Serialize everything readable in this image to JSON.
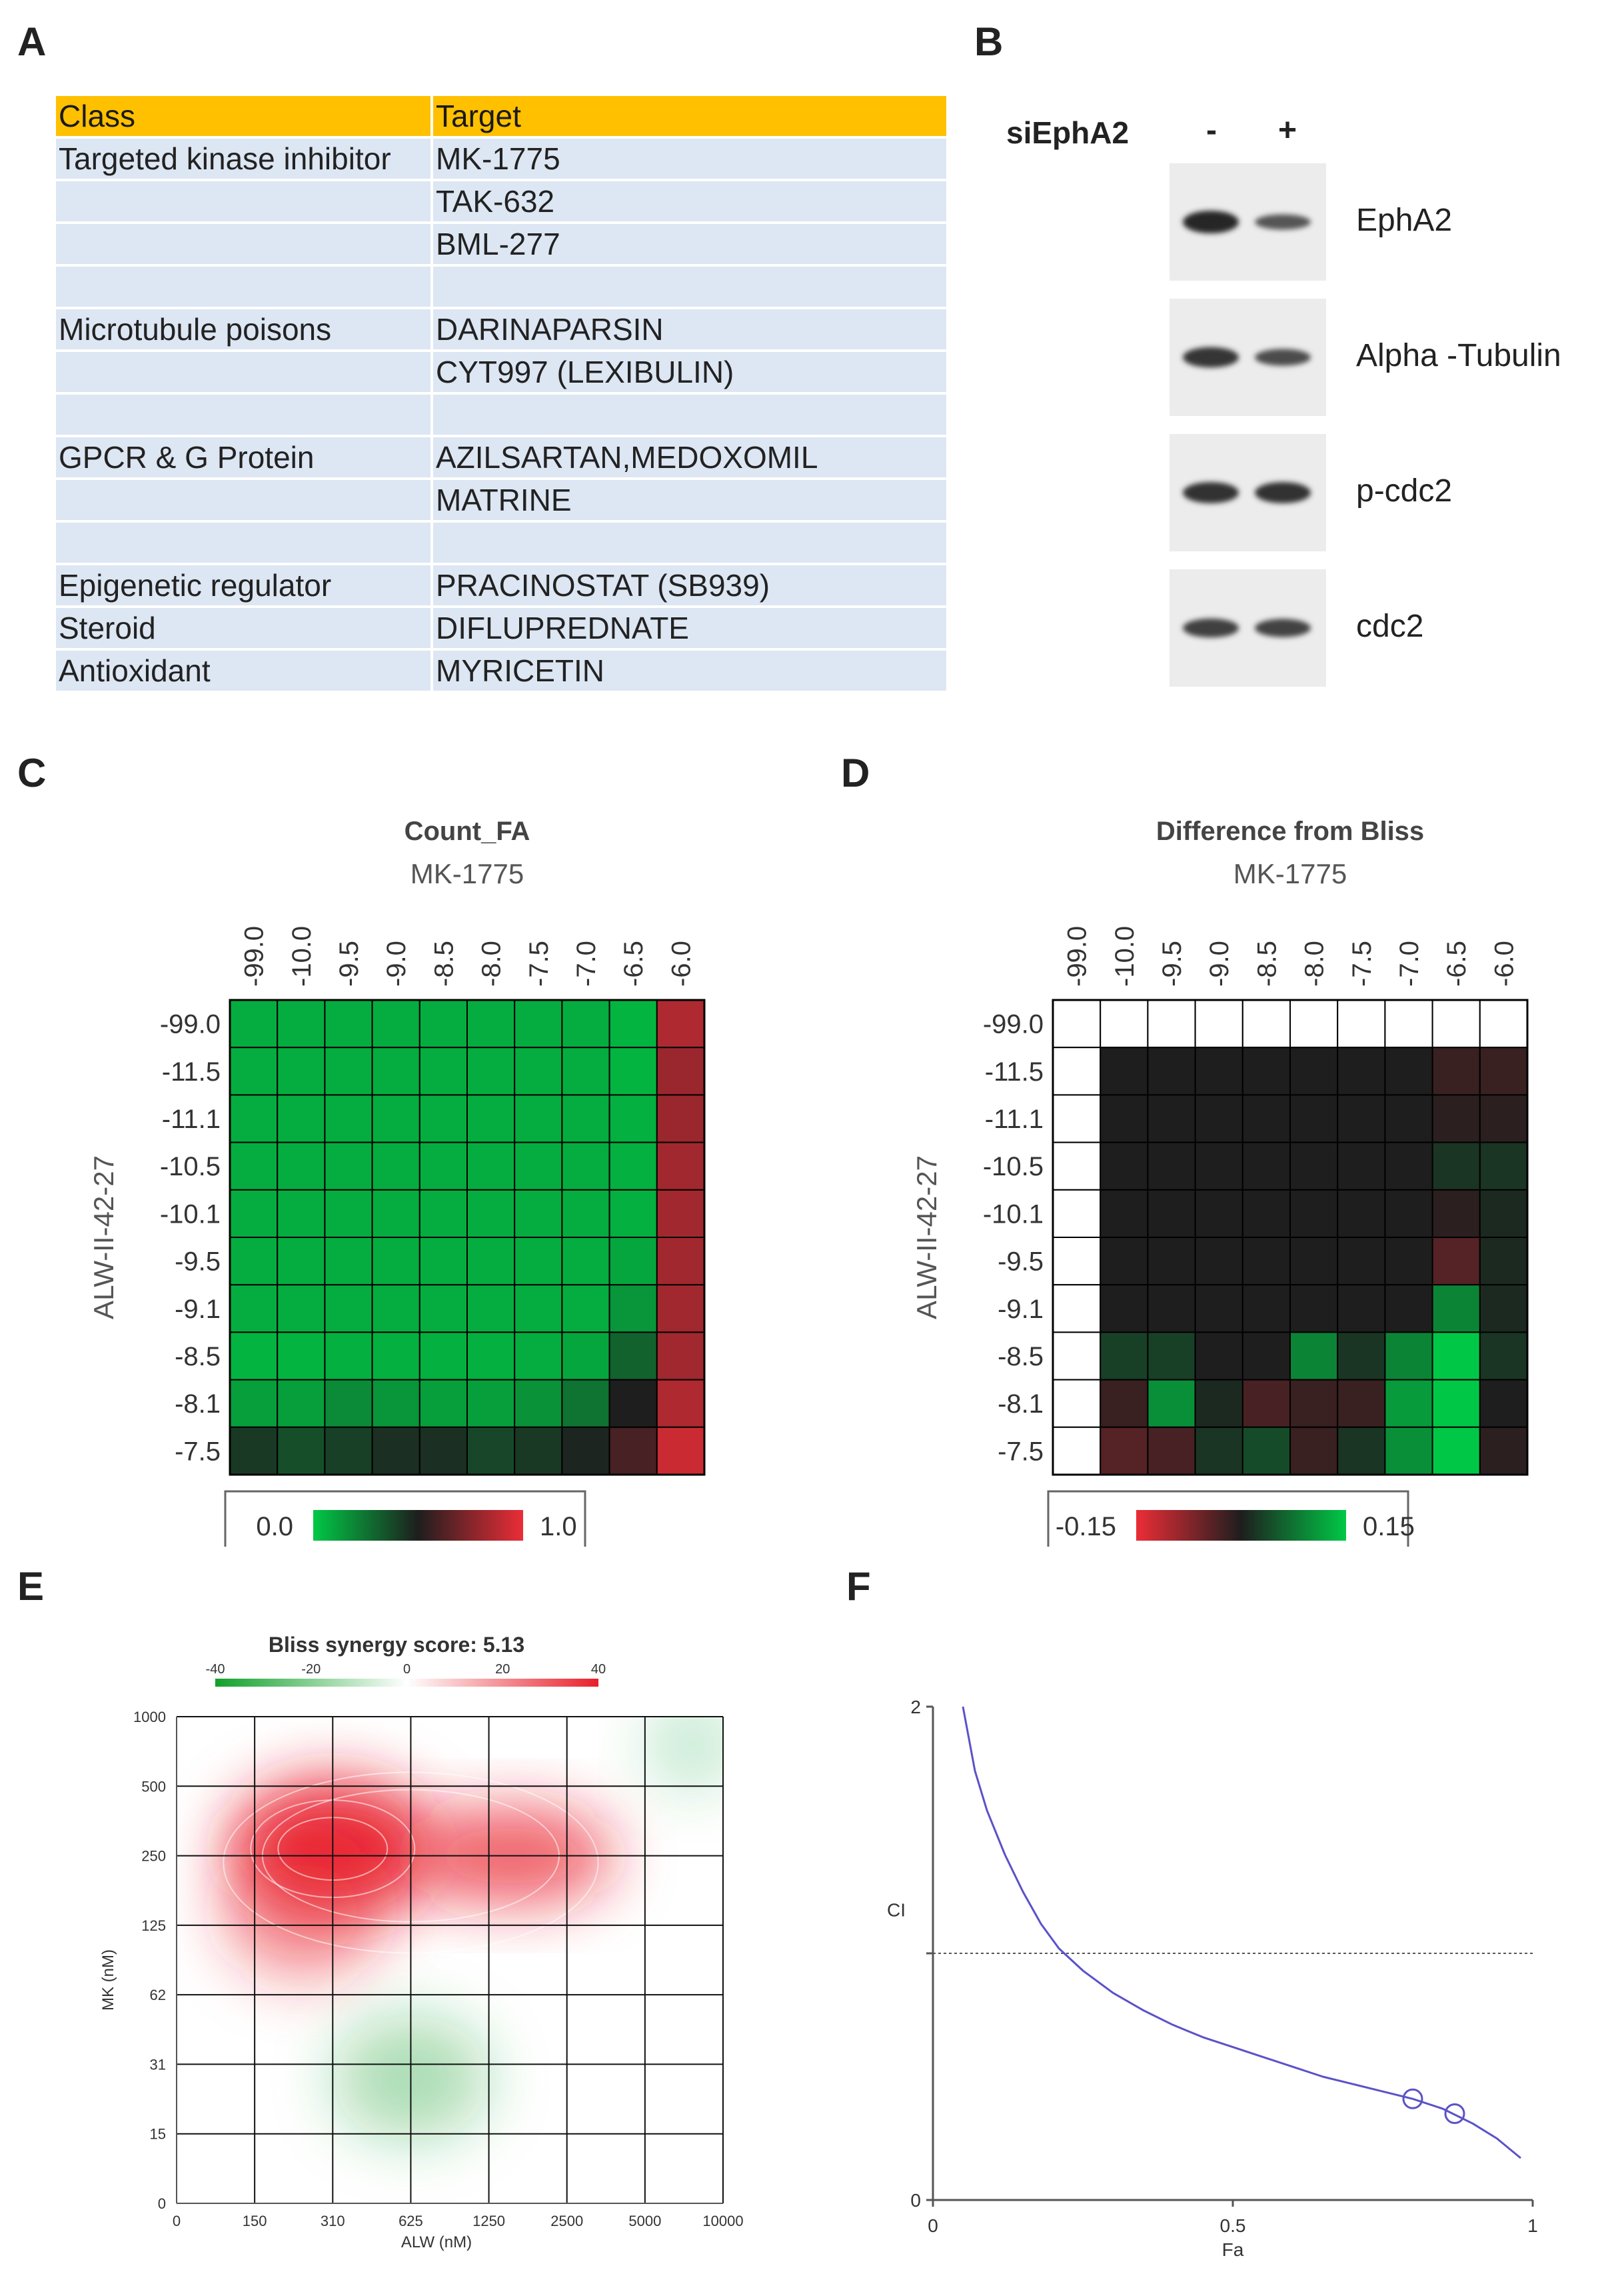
{
  "panels": {
    "A": "A",
    "B": "B",
    "C": "C",
    "D": "D",
    "E": "E",
    "F": "F"
  },
  "table": {
    "header": [
      "Class",
      "Target"
    ],
    "rows": [
      [
        "Targeted kinase inhibitor",
        "MK-1775"
      ],
      [
        "",
        "TAK-632"
      ],
      [
        "",
        "BML-277"
      ],
      [
        "",
        ""
      ],
      [
        "Microtubule  poisons",
        "DARINAPARSIN"
      ],
      [
        "",
        "CYT997  (LEXIBULIN)"
      ],
      [
        "",
        ""
      ],
      [
        "GPCR & G Protein",
        "AZILSARTAN,MEDOXOMIL"
      ],
      [
        "",
        "MATRINE"
      ],
      [
        "",
        ""
      ],
      [
        "Epigenetic regulator",
        "PRACINOSTAT  (SB939)"
      ],
      [
        "Steroid",
        "DIFLUPREDNATE"
      ],
      [
        "Antioxidant",
        "MYRICETIN"
      ]
    ]
  },
  "blot": {
    "sirna_label": "siEphA2",
    "lanes": [
      "-",
      "+"
    ],
    "proteins": [
      {
        "name": "EphA2",
        "intensity": [
          1.0,
          0.5
        ]
      },
      {
        "name": "Alpha -Tubulin",
        "intensity": [
          0.85,
          0.6
        ]
      },
      {
        "name": "p-cdc2",
        "intensity": [
          0.9,
          0.9
        ]
      },
      {
        "name": "cdc2",
        "intensity": [
          0.75,
          0.7
        ]
      }
    ]
  },
  "chart_data": [
    {
      "id": "C",
      "type": "heatmap",
      "title": "Count_FA",
      "xlabel": "MK-1775",
      "ylabel": "ALW-II-42-27",
      "x_ticks": [
        "-99.0",
        "-10.0",
        "-9.5",
        "-9.0",
        "-8.5",
        "-8.0",
        "-7.5",
        "-7.0",
        "-6.5",
        "-6.0"
      ],
      "y_ticks": [
        "-99.0",
        "-11.5",
        "-11.1",
        "-10.5",
        "-10.1",
        "-9.5",
        "-9.1",
        "-8.5",
        "-8.1",
        "-7.5"
      ],
      "values": [
        [
          0.08,
          0.08,
          0.08,
          0.08,
          0.08,
          0.08,
          0.08,
          0.08,
          0.06,
          0.85
        ],
        [
          0.08,
          0.08,
          0.08,
          0.08,
          0.08,
          0.08,
          0.08,
          0.08,
          0.06,
          0.8
        ],
        [
          0.08,
          0.08,
          0.08,
          0.08,
          0.08,
          0.08,
          0.08,
          0.08,
          0.07,
          0.8
        ],
        [
          0.08,
          0.08,
          0.08,
          0.08,
          0.08,
          0.08,
          0.08,
          0.08,
          0.07,
          0.82
        ],
        [
          0.08,
          0.08,
          0.08,
          0.08,
          0.08,
          0.08,
          0.08,
          0.08,
          0.07,
          0.82
        ],
        [
          0.08,
          0.08,
          0.08,
          0.08,
          0.08,
          0.08,
          0.08,
          0.08,
          0.1,
          0.82
        ],
        [
          0.08,
          0.08,
          0.08,
          0.08,
          0.08,
          0.08,
          0.08,
          0.08,
          0.15,
          0.82
        ],
        [
          0.06,
          0.06,
          0.07,
          0.07,
          0.07,
          0.07,
          0.08,
          0.1,
          0.3,
          0.82
        ],
        [
          0.12,
          0.12,
          0.18,
          0.15,
          0.12,
          0.12,
          0.16,
          0.25,
          0.5,
          0.85
        ],
        [
          0.42,
          0.36,
          0.4,
          0.45,
          0.45,
          0.38,
          0.42,
          0.48,
          0.6,
          0.92
        ]
      ],
      "colorbar": {
        "min": "0.0",
        "max": "1.0",
        "range": [
          0.0,
          1.0
        ]
      }
    },
    {
      "id": "D",
      "type": "heatmap",
      "title": "Difference from Bliss",
      "xlabel": "MK-1775",
      "ylabel": "ALW-II-42-27",
      "x_ticks": [
        "-99.0",
        "-10.0",
        "-9.5",
        "-9.0",
        "-8.5",
        "-8.0",
        "-7.5",
        "-7.0",
        "-6.5",
        "-6.0"
      ],
      "y_ticks": [
        "-99.0",
        "-11.5",
        "-11.1",
        "-10.5",
        "-10.1",
        "-9.5",
        "-9.1",
        "-8.5",
        "-8.1",
        "-7.5"
      ],
      "values": [
        [
          null,
          null,
          null,
          null,
          null,
          null,
          null,
          null,
          null,
          null
        ],
        [
          null,
          0,
          0,
          0,
          0,
          0,
          0,
          0,
          -0.02,
          -0.02
        ],
        [
          null,
          0,
          0,
          0,
          0,
          0,
          0,
          0,
          -0.01,
          -0.01
        ],
        [
          null,
          0,
          0,
          0,
          0,
          0,
          0,
          0,
          0.02,
          0.02
        ],
        [
          null,
          0,
          0,
          0,
          0,
          0,
          0,
          0,
          -0.01,
          0.01
        ],
        [
          null,
          0,
          0,
          0,
          0,
          0,
          0,
          0,
          -0.04,
          0.01
        ],
        [
          null,
          0,
          0,
          0,
          0,
          0,
          0,
          0,
          0.09,
          0.01
        ],
        [
          null,
          0.03,
          0.03,
          0,
          0,
          0.09,
          0.02,
          0.09,
          0.16,
          0.02
        ],
        [
          null,
          -0.02,
          0.1,
          0.01,
          -0.03,
          -0.02,
          -0.02,
          0.11,
          0.16,
          0
        ],
        [
          null,
          -0.04,
          -0.03,
          0.02,
          0.04,
          -0.02,
          0.02,
          0.1,
          0.18,
          -0.01
        ]
      ],
      "colorbar": {
        "min": "-0.15",
        "max": "0.15",
        "range": [
          -0.15,
          0.15
        ]
      }
    },
    {
      "id": "E",
      "type": "heatmap",
      "title": "Bliss synergy score: 5.13",
      "xlabel": "ALW (nM)",
      "ylabel": "MK (nM)",
      "x_ticks": [
        "0",
        "150",
        "310",
        "625",
        "1250",
        "2500",
        "5000",
        "10000"
      ],
      "y_ticks": [
        "0",
        "15",
        "31",
        "62",
        "125",
        "250",
        "500",
        "1000"
      ],
      "colorbar_ticks": [
        "-40",
        "-20",
        "0",
        "20",
        "40"
      ],
      "synergy_regions": [
        {
          "x": 2.0,
          "y": 5.1,
          "value": 38,
          "sx": 1.3,
          "sy": 1.0
        },
        {
          "x": 4.3,
          "y": 5.0,
          "value": 28,
          "sx": 1.3,
          "sy": 0.7
        },
        {
          "x": 1.6,
          "y": 4.2,
          "value": 18,
          "sx": 1.0,
          "sy": 1.0
        },
        {
          "x": 3.0,
          "y": 1.8,
          "value": -16,
          "sx": 1.0,
          "sy": 0.9
        },
        {
          "x": 6.6,
          "y": 6.6,
          "value": -10,
          "sx": 0.6,
          "sy": 0.7
        }
      ]
    },
    {
      "id": "F",
      "type": "line",
      "xlabel": "Fa",
      "ylabel": "CI",
      "x_ticks": [
        "0",
        "0.5",
        "1"
      ],
      "y_ticks": [
        "0",
        "2"
      ],
      "xlim": [
        0,
        1
      ],
      "ylim": [
        0,
        2
      ],
      "reference_line": 1.0,
      "x": [
        0.05,
        0.07,
        0.09,
        0.12,
        0.15,
        0.18,
        0.21,
        0.25,
        0.3,
        0.35,
        0.4,
        0.45,
        0.5,
        0.55,
        0.6,
        0.65,
        0.7,
        0.75,
        0.8,
        0.85,
        0.9,
        0.94,
        0.98
      ],
      "y": [
        2.0,
        1.74,
        1.58,
        1.4,
        1.25,
        1.12,
        1.02,
        0.93,
        0.84,
        0.77,
        0.71,
        0.66,
        0.62,
        0.58,
        0.54,
        0.5,
        0.47,
        0.44,
        0.41,
        0.37,
        0.31,
        0.25,
        0.17
      ],
      "points": [
        {
          "x": 0.8,
          "y": 0.41
        },
        {
          "x": 0.87,
          "y": 0.35
        }
      ]
    }
  ]
}
